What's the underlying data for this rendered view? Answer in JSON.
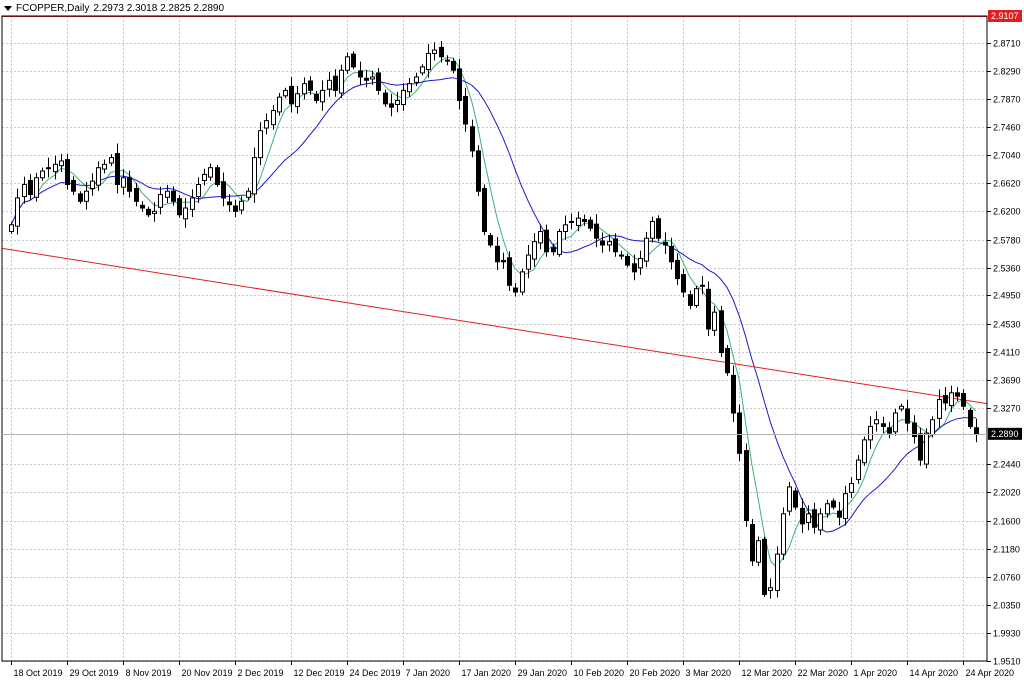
{
  "header": {
    "symbol": "FCOPPER,Daily",
    "ohlc": "2.2973 2.3018 2.2825 2.2890"
  },
  "price_labels": {
    "hline": "2.9107",
    "current": "2.2890"
  },
  "colors": {
    "bull": "#ffffff",
    "bear": "#000000",
    "ma_fast": "#3cb371",
    "ma_slow": "#1a1acd",
    "trendline": "#e02020",
    "hline": "#e02020",
    "grid": "#c8c8c8"
  },
  "chart_data": {
    "type": "candlestick",
    "title": "FCOPPER,Daily",
    "ylim": [
      1.951,
      2.9107
    ],
    "y_ticks": [
      2.871,
      2.829,
      2.787,
      2.746,
      2.704,
      2.662,
      2.62,
      2.578,
      2.536,
      2.495,
      2.453,
      2.411,
      2.369,
      2.327,
      2.244,
      2.202,
      2.16,
      2.118,
      2.076,
      2.035,
      1.993,
      1.951
    ],
    "x_labels": [
      "18 Oct 2019",
      "29 Oct 2019",
      "8 Nov 2019",
      "20 Nov 2019",
      "2 Dec 2019",
      "12 Dec 2019",
      "24 Dec 2019",
      "7 Jan 2020",
      "17 Jan 2020",
      "29 Jan 2020",
      "10 Feb 2020",
      "20 Feb 2020",
      "3 Mar 2020",
      "12 Mar 2020",
      "22 Mar 2020",
      "1 Apr 2020",
      "14 Apr 2020",
      "24 Apr 2020"
    ],
    "hline": 2.9107,
    "current_price": 2.289,
    "trendline": {
      "start": 2.565,
      "end": 2.334
    },
    "closes": [
      2.6,
      2.64,
      2.66,
      2.645,
      2.67,
      2.68,
      2.685,
      2.69,
      2.695,
      2.66,
      2.65,
      2.635,
      2.65,
      2.665,
      2.685,
      2.69,
      2.7,
      2.66,
      2.67,
      2.65,
      2.635,
      2.625,
      2.615,
      2.62,
      2.645,
      2.65,
      2.635,
      2.615,
      2.625,
      2.64,
      2.66,
      2.675,
      2.685,
      2.66,
      2.64,
      2.63,
      2.62,
      2.635,
      2.65,
      2.7,
      2.74,
      2.755,
      2.77,
      2.79,
      2.8,
      2.78,
      2.795,
      2.81,
      2.8,
      2.785,
      2.8,
      2.815,
      2.8,
      2.83,
      2.85,
      2.835,
      2.82,
      2.815,
      2.82,
      2.8,
      2.78,
      2.775,
      2.785,
      2.8,
      2.81,
      2.82,
      2.835,
      2.855,
      2.86,
      2.85,
      2.845,
      2.83,
      2.785,
      2.75,
      2.71,
      2.65,
      2.59,
      2.57,
      2.545,
      2.545,
      2.51,
      2.5,
      2.53,
      2.555,
      2.575,
      2.59,
      2.56,
      2.56,
      2.59,
      2.6,
      2.605,
      2.61,
      2.605,
      2.595,
      2.58,
      2.57,
      2.575,
      2.56,
      2.555,
      2.54,
      2.53,
      2.55,
      2.58,
      2.605,
      2.58,
      2.57,
      2.545,
      2.52,
      2.5,
      2.48,
      2.505,
      2.51,
      2.445,
      2.47,
      2.41,
      2.38,
      2.32,
      2.26,
      2.16,
      2.1,
      2.13,
      2.05,
      2.06,
      2.11,
      2.17,
      2.21,
      2.18,
      2.155,
      2.17,
      2.15,
      2.17,
      2.185,
      2.18,
      2.165,
      2.2,
      2.215,
      2.25,
      2.28,
      2.3,
      2.31,
      2.3,
      2.29,
      2.32,
      2.33,
      2.305,
      2.285,
      2.25,
      2.29,
      2.31,
      2.34,
      2.335,
      2.35,
      2.345,
      2.33,
      2.3,
      2.289
    ]
  }
}
